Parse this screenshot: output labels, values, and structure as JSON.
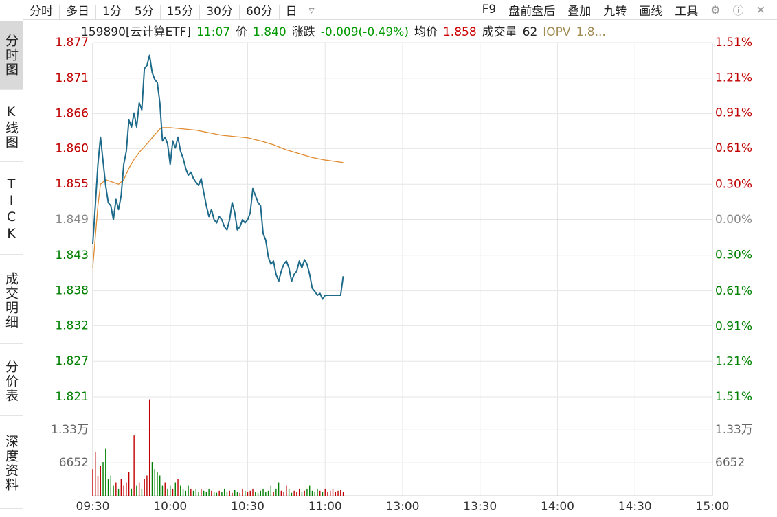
{
  "toolbar": {
    "tabs": [
      "分时",
      "多日",
      "1分",
      "5分",
      "15分",
      "30分",
      "60分",
      "日"
    ],
    "tools": [
      "F9",
      "盘前盘后",
      "叠加",
      "九转",
      "画线",
      "工具"
    ]
  },
  "info": {
    "items": [
      {
        "text": "159890[云计算ETF]",
        "color": "#222222"
      },
      {
        "text": "11:07",
        "color": "#009900"
      },
      {
        "text": "价",
        "color": "#222222"
      },
      {
        "text": "1.840",
        "color": "#009900"
      },
      {
        "text": "涨跌",
        "color": "#222222"
      },
      {
        "text": "-0.009(-0.49%)",
        "color": "#009900"
      },
      {
        "text": "均价",
        "color": "#222222"
      },
      {
        "text": "1.858",
        "color": "#cc0000"
      },
      {
        "text": "成交量",
        "color": "#222222"
      },
      {
        "text": "62",
        "color": "#222222"
      },
      {
        "text": "IOPV",
        "color": "#a08a50"
      },
      {
        "text": "1.8...",
        "color": "#a08a50"
      }
    ]
  },
  "sidebar": [
    "分时图",
    "K线图",
    "TICK",
    "成交明细",
    "分价表",
    "深度资料"
  ],
  "chart_data": {
    "type": "line",
    "colors": {
      "up": "#c00000",
      "down": "#008000",
      "flat": "#888888"
    },
    "xlim": [
      0,
      240
    ],
    "xticks": [
      {
        "value": 0,
        "label": "09:30"
      },
      {
        "value": 30,
        "label": "10:00"
      },
      {
        "value": 60,
        "label": "10:30"
      },
      {
        "value": 90,
        "label": "11:00"
      },
      {
        "value": 120,
        "label": "13:00"
      },
      {
        "value": 150,
        "label": "13:30"
      },
      {
        "value": 180,
        "label": "14:00"
      },
      {
        "value": 210,
        "label": "14:30"
      },
      {
        "value": 240,
        "label": "15:00"
      }
    ],
    "ylim": [
      1.8211,
      1.8769
    ],
    "yticks": [
      {
        "value": 1.8769,
        "label": "1.877"
      },
      {
        "value": 1.8713,
        "label": "1.871"
      },
      {
        "value": 1.8657,
        "label": "1.866"
      },
      {
        "value": 1.8602,
        "label": "1.860"
      },
      {
        "value": 1.8546,
        "label": "1.855"
      },
      {
        "value": 1.849,
        "label": "1.849"
      },
      {
        "value": 1.8434,
        "label": "1.843"
      },
      {
        "value": 1.8378,
        "label": "1.838"
      },
      {
        "value": 1.8323,
        "label": "1.832"
      },
      {
        "value": 1.8267,
        "label": "1.827"
      },
      {
        "value": 1.8211,
        "label": "1.821"
      }
    ],
    "y2lim": [
      -1.51,
      1.51
    ],
    "y2ticks": [
      {
        "value": 1.51,
        "label": "1.51%"
      },
      {
        "value": 1.21,
        "label": "1.21%"
      },
      {
        "value": 0.91,
        "label": "0.91%"
      },
      {
        "value": 0.61,
        "label": "0.61%"
      },
      {
        "value": 0.3,
        "label": "0.30%"
      },
      {
        "value": 0,
        "label": "0.00%"
      },
      {
        "value": -0.3,
        "label": "0.30%"
      },
      {
        "value": -0.61,
        "label": "0.61%"
      },
      {
        "value": -0.91,
        "label": "0.91%"
      },
      {
        "value": -1.21,
        "label": "1.21%"
      },
      {
        "value": -1.51,
        "label": "1.51%"
      }
    ],
    "series": [
      {
        "color": "#1d6a8a",
        "x": [
          0,
          1,
          2,
          3,
          4,
          5,
          6,
          7,
          8,
          9,
          10,
          11,
          12,
          13,
          14,
          15,
          16,
          17,
          18,
          19,
          20,
          21,
          22,
          23,
          24,
          25,
          26,
          27,
          28,
          29,
          30,
          31,
          32,
          33,
          34,
          35,
          36,
          37,
          38,
          39,
          40,
          41,
          42,
          43,
          44,
          45,
          46,
          47,
          48,
          49,
          50,
          51,
          52,
          53,
          54,
          55,
          56,
          57,
          58,
          59,
          60,
          61,
          62,
          63,
          64,
          65,
          66,
          67,
          68,
          69,
          70,
          71,
          72,
          73,
          74,
          75,
          76,
          77,
          78,
          79,
          80,
          81,
          82,
          83,
          84,
          85,
          86,
          87,
          88,
          89,
          90,
          91,
          92,
          93,
          94,
          95,
          96,
          97
        ],
        "values": [
          1.8452,
          1.8512,
          1.8577,
          1.862,
          1.8582,
          1.8544,
          1.8517,
          1.8512,
          1.849,
          1.8522,
          1.8506,
          1.8528,
          1.8577,
          1.8598,
          1.8647,
          1.8636,
          1.8658,
          1.8636,
          1.8674,
          1.8663,
          1.8728,
          1.8733,
          1.8749,
          1.8722,
          1.8711,
          1.8706,
          1.8674,
          1.8614,
          1.862,
          1.8609,
          1.8577,
          1.8614,
          1.8603,
          1.862,
          1.8598,
          1.8587,
          1.8571,
          1.856,
          1.8565,
          1.8555,
          1.8549,
          1.8544,
          1.8555,
          1.8533,
          1.8512,
          1.8495,
          1.8506,
          1.849,
          1.8485,
          1.8495,
          1.849,
          1.8479,
          1.8474,
          1.849,
          1.8517,
          1.8501,
          1.8474,
          1.8479,
          1.849,
          1.8485,
          1.849,
          1.8501,
          1.8539,
          1.8528,
          1.8517,
          1.8512,
          1.8468,
          1.8458,
          1.8431,
          1.842,
          1.8425,
          1.8404,
          1.8393,
          1.8409,
          1.842,
          1.8425,
          1.8414,
          1.8393,
          1.8404,
          1.8409,
          1.8425,
          1.8414,
          1.8427,
          1.842,
          1.8404,
          1.8382,
          1.8377,
          1.8371,
          1.8374,
          1.8365,
          1.8371,
          1.8371,
          1.8371,
          1.8371,
          1.8371,
          1.8371,
          1.8371,
          1.8401
        ]
      },
      {
        "color": "#e08a2e",
        "x": [
          0,
          2,
          3,
          5,
          10,
          12,
          14,
          16,
          18,
          20,
          22,
          24,
          26,
          27,
          30,
          40,
          50,
          60,
          65,
          70,
          75,
          80,
          85,
          90,
          97
        ],
        "values": [
          1.8414,
          1.8512,
          1.8546,
          1.8553,
          1.8546,
          1.8553,
          1.8571,
          1.8585,
          1.8596,
          1.8605,
          1.8614,
          1.8624,
          1.8633,
          1.8635,
          1.8635,
          1.8631,
          1.8623,
          1.8619,
          1.8614,
          1.8608,
          1.86,
          1.8594,
          1.8588,
          1.8584,
          1.858
        ]
      }
    ],
    "volume": {
      "ylim": [
        0,
        20000
      ],
      "yticks": [
        {
          "value": 13300,
          "label": "1.33万"
        },
        6652
      ],
      "values": [
        5400,
        8800,
        4000,
        6100,
        6800,
        9500,
        3400,
        4100,
        2000,
        2700,
        1400,
        3400,
        2000,
        2700,
        4800,
        1400,
        12200,
        2000,
        2700,
        1400,
        3400,
        4100,
        19500,
        6800,
        5400,
        4800,
        4100,
        2000,
        2700,
        1400,
        2000,
        1400,
        2700,
        3400,
        2000,
        1400,
        1000,
        2000,
        1400,
        1000,
        1400,
        800,
        1400,
        1000,
        700,
        1400,
        1000,
        800,
        600,
        1000,
        800,
        1400,
        700,
        1000,
        600,
        1200,
        800,
        600,
        1400,
        1000,
        700,
        1000,
        1400,
        800,
        600,
        1000,
        1400,
        700,
        1000,
        2000,
        800,
        1400,
        2700,
        1000,
        700,
        2000,
        1400,
        600,
        1000,
        800,
        1400,
        700,
        1000,
        1400,
        2000,
        1000,
        700,
        1400,
        1000,
        800,
        1400,
        700,
        1000,
        1400,
        700,
        1000,
        1200,
        800
      ]
    }
  }
}
